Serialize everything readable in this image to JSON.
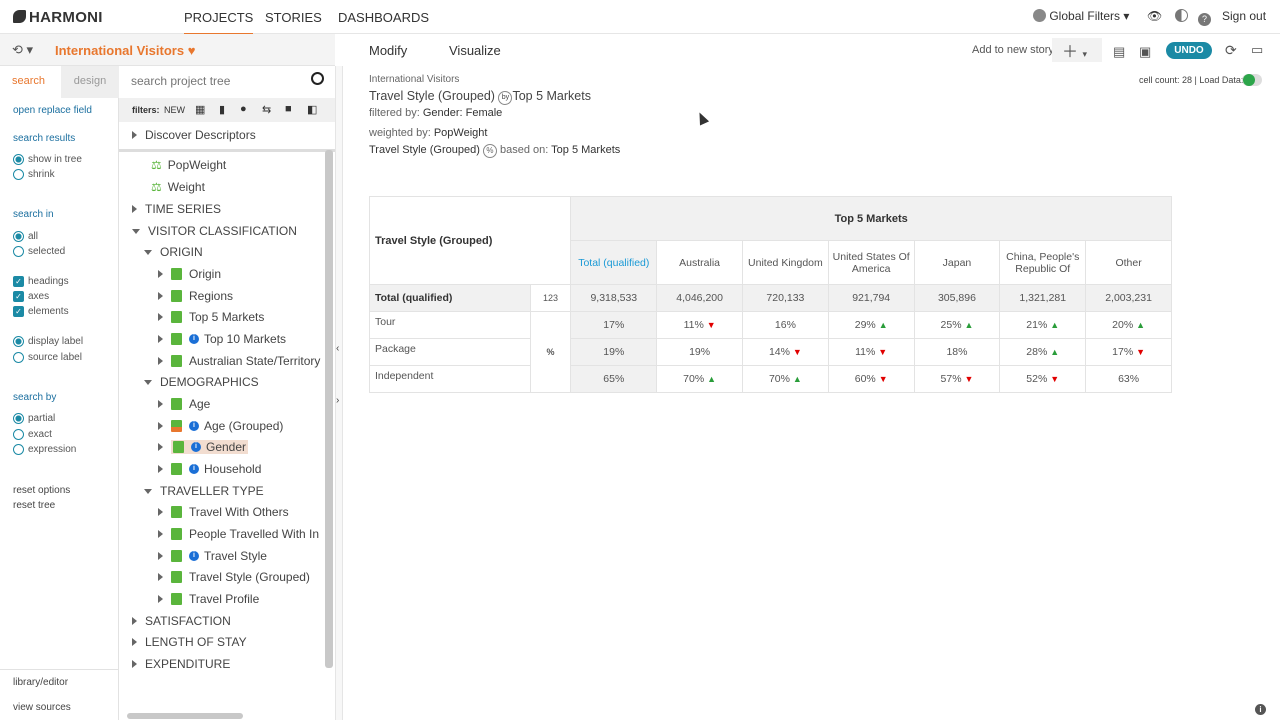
{
  "app": {
    "logo": "HARMONI",
    "nav": [
      "PROJECTS",
      "STORIES",
      "DASHBOARDS"
    ],
    "global_filters": "Global Filters",
    "sign_out": "Sign out"
  },
  "project": {
    "title": "International Visitors"
  },
  "toolbar": {
    "modify": "Modify",
    "visualize": "Visualize",
    "add_story": "Add to new story",
    "undo": "UNDO"
  },
  "sidebar": {
    "tab_search": "search",
    "tab_design": "design",
    "open_replace": "open replace field",
    "search_results": "search results",
    "show_in_tree": "show in tree",
    "shrink": "shrink",
    "search_in": "search in",
    "all": "all",
    "selected": "selected",
    "headings": "headings",
    "axes": "axes",
    "elements": "elements",
    "display_label": "display label",
    "source_label": "source label",
    "search_by": "search by",
    "partial": "partial",
    "exact": "exact",
    "expression": "expression",
    "reset_options": "reset options",
    "reset_tree": "reset tree",
    "library_editor": "library/editor",
    "view_sources": "view sources"
  },
  "tree": {
    "search_placeholder": "search project tree",
    "filters_label": "filters:",
    "filters_new": "NEW",
    "items": [
      "Discover Descriptors",
      "PopWeight",
      "Weight",
      "TIME SERIES",
      "VISITOR CLASSIFICATION",
      "ORIGIN",
      "Origin",
      "Regions",
      "Top 5 Markets",
      "Top 10 Markets",
      "Australian State/Territory",
      "DEMOGRAPHICS",
      "Age",
      "Age (Grouped)",
      "Gender",
      "Household",
      "TRAVELLER TYPE",
      "Travel With Others",
      "People Travelled With In",
      "Travel Style",
      "Travel Style (Grouped)",
      "Travel Profile",
      "SATISFACTION",
      "LENGTH OF STAY",
      "EXPENDITURE"
    ]
  },
  "report": {
    "source": "International Visitors",
    "title_a": "Travel Style (Grouped)",
    "by": "by",
    "title_b": "Top 5 Markets",
    "filtered_label": "filtered by:",
    "filtered_value": "Gender: Female",
    "weighted_label": "weighted by:",
    "weighted_value": "PopWeight",
    "pct_row": "Travel Style (Grouped)",
    "pct_sym": "%",
    "based_on": "based on:",
    "based_value": "Top 5 Markets",
    "cell_count": "cell count: 28 | Load Data:"
  },
  "table": {
    "row_header": "Travel Style (Grouped)",
    "col_group": "Top 5 Markets",
    "columns": [
      "Total (qualified)",
      "Australia",
      "United Kingdom",
      "United States Of America",
      "Japan",
      "China, People's Republic Of",
      "Other"
    ],
    "rows": [
      {
        "label": "Total (qualified)",
        "unit": "123",
        "cells": [
          "9,318,533",
          "4,046,200",
          "720,133",
          "921,794",
          "305,896",
          "1,321,281",
          "2,003,231"
        ],
        "sig": [
          "",
          "",
          "",
          "",
          "",
          "",
          ""
        ]
      },
      {
        "label": "Tour",
        "unit": "%",
        "cells": [
          "17%",
          "11%",
          "16%",
          "29%",
          "25%",
          "21%",
          "20%"
        ],
        "sig": [
          "",
          "down",
          "",
          "up",
          "up",
          "up",
          "up"
        ]
      },
      {
        "label": "Package",
        "unit": "",
        "cells": [
          "19%",
          "19%",
          "14%",
          "11%",
          "18%",
          "28%",
          "17%"
        ],
        "sig": [
          "",
          "",
          "down",
          "down",
          "",
          "up",
          "down"
        ]
      },
      {
        "label": "Independent",
        "unit": "",
        "cells": [
          "65%",
          "70%",
          "70%",
          "60%",
          "57%",
          "52%",
          "63%"
        ],
        "sig": [
          "",
          "up",
          "up",
          "down",
          "down",
          "down",
          ""
        ]
      }
    ]
  },
  "colors": {
    "accent": "#e8772e",
    "teal": "#1b8aa5",
    "up": "#2a9d3a",
    "down": "#e10000"
  }
}
